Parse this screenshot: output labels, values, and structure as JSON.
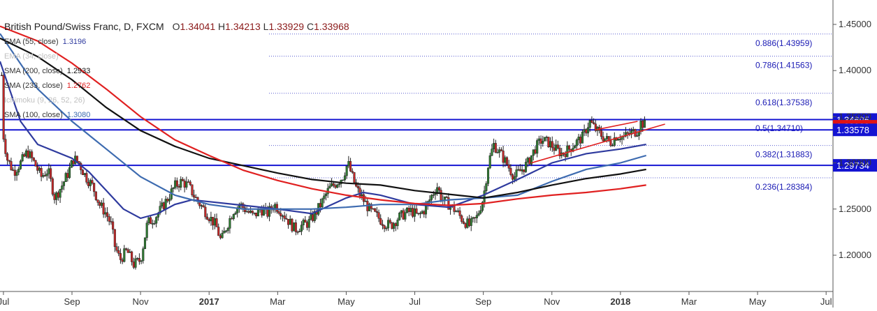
{
  "header": {
    "symbol_title": "British Pound/Swiss Franc, D, FXCM",
    "open_label": "O",
    "open": "1.34041",
    "high_label": "H",
    "high": "1.34213",
    "low_label": "L",
    "low": "1.33929",
    "close_label": "C",
    "close": "1.33968"
  },
  "legend": [
    {
      "label": "EMA (55, close)",
      "value": "1.3196",
      "color": "#2e3a9e",
      "faded": false
    },
    {
      "label": "EMA (34, close)",
      "value": "",
      "color": "#b0b0b0",
      "faded": true
    },
    {
      "label": "SMA (200, close)",
      "value": "1.2933",
      "color": "#111111",
      "faded": false
    },
    {
      "label": "SMA (233, close)",
      "value": "1.2762",
      "color": "#e02020",
      "faded": false
    },
    {
      "label": "Ichimoku (9, 26, 52, 26)",
      "value": "",
      "color": "#c8c8c8",
      "faded": true
    },
    {
      "label": "SMA (100, close)",
      "value": "1.3080",
      "color": "#3d6bb0",
      "faded": false
    }
  ],
  "chart_data": {
    "type": "line",
    "title": "British Pound/Swiss Franc, D, FXCM",
    "ylim": [
      1.175,
      1.465
    ],
    "y_ticks": [
      1.2,
      1.25,
      1.3,
      1.35,
      1.4,
      1.45
    ],
    "y_tick_labels": [
      "1.20000",
      "1.25000",
      "1.30000",
      "1.35000",
      "1.40000",
      "1.45000"
    ],
    "x_ticks": [
      {
        "label": "Jul",
        "t": 0,
        "bold": false
      },
      {
        "label": "Sep",
        "t": 2,
        "bold": false
      },
      {
        "label": "Nov",
        "t": 4,
        "bold": false
      },
      {
        "label": "2017",
        "t": 6,
        "bold": true
      },
      {
        "label": "Mar",
        "t": 8,
        "bold": false
      },
      {
        "label": "May",
        "t": 10,
        "bold": false
      },
      {
        "label": "Jul",
        "t": 12,
        "bold": false
      },
      {
        "label": "Sep",
        "t": 14,
        "bold": false
      },
      {
        "label": "Nov",
        "t": 16,
        "bold": false
      },
      {
        "label": "2018",
        "t": 18,
        "bold": true
      },
      {
        "label": "Mar",
        "t": 20,
        "bold": false
      },
      {
        "label": "May",
        "t": 22,
        "bold": false
      },
      {
        "label": "Jul",
        "t": 24,
        "bold": false
      }
    ],
    "x_domain_months": [
      -0.1,
      24.2
    ],
    "horizontal_levels": [
      {
        "value": 1.34695,
        "label": "1.34695",
        "color": "#1414d2"
      },
      {
        "value": 1.33968,
        "label": "1.33968",
        "color": "#e01414"
      },
      {
        "value": 1.33578,
        "label": "1.33578",
        "color": "#1414d2"
      },
      {
        "value": 1.29734,
        "label": "1.29734",
        "color": "#1414d2"
      }
    ],
    "fib_levels": [
      {
        "value": 1.43959,
        "label": "0.886(1.43959)"
      },
      {
        "value": 1.41563,
        "label": "0.786(1.41563)"
      },
      {
        "value": 1.37538,
        "label": "0.618(1.37538)"
      },
      {
        "value": 1.3471,
        "label": "0.5(1.34710)"
      },
      {
        "value": 1.31883,
        "label": "0.382(1.31883)"
      },
      {
        "value": 1.28384,
        "label": "0.236(1.28384)"
      }
    ],
    "price_close": [
      [
        -0.2,
        1.432
      ],
      [
        -0.05,
        1.395
      ],
      [
        0.0,
        1.33
      ],
      [
        0.1,
        1.305
      ],
      [
        0.3,
        1.29
      ],
      [
        0.5,
        1.3
      ],
      [
        0.7,
        1.312
      ],
      [
        0.9,
        1.3
      ],
      [
        1.1,
        1.285
      ],
      [
        1.3,
        1.292
      ],
      [
        1.5,
        1.262
      ],
      [
        1.7,
        1.275
      ],
      [
        1.9,
        1.29
      ],
      [
        2.05,
        1.305
      ],
      [
        2.2,
        1.3
      ],
      [
        2.4,
        1.285
      ],
      [
        2.6,
        1.275
      ],
      [
        2.8,
        1.255
      ],
      [
        3.0,
        1.245
      ],
      [
        3.15,
        1.232
      ],
      [
        3.25,
        1.21
      ],
      [
        3.4,
        1.195
      ],
      [
        3.6,
        1.205
      ],
      [
        3.8,
        1.19
      ],
      [
        4.0,
        1.195
      ],
      [
        4.1,
        1.215
      ],
      [
        4.2,
        1.235
      ],
      [
        4.4,
        1.24
      ],
      [
        4.6,
        1.25
      ],
      [
        4.8,
        1.262
      ],
      [
        5.0,
        1.275
      ],
      [
        5.2,
        1.28
      ],
      [
        5.4,
        1.275
      ],
      [
        5.6,
        1.262
      ],
      [
        5.8,
        1.252
      ],
      [
        6.0,
        1.242
      ],
      [
        6.2,
        1.232
      ],
      [
        6.35,
        1.215
      ],
      [
        6.5,
        1.23
      ],
      [
        6.7,
        1.248
      ],
      [
        6.9,
        1.255
      ],
      [
        7.1,
        1.248
      ],
      [
        7.3,
        1.242
      ],
      [
        7.5,
        1.25
      ],
      [
        7.7,
        1.245
      ],
      [
        7.9,
        1.255
      ],
      [
        8.1,
        1.248
      ],
      [
        8.3,
        1.238
      ],
      [
        8.5,
        1.228
      ],
      [
        8.7,
        1.232
      ],
      [
        8.9,
        1.235
      ],
      [
        9.1,
        1.245
      ],
      [
        9.3,
        1.258
      ],
      [
        9.5,
        1.272
      ],
      [
        9.7,
        1.278
      ],
      [
        9.9,
        1.285
      ],
      [
        10.05,
        1.3
      ],
      [
        10.15,
        1.288
      ],
      [
        10.3,
        1.272
      ],
      [
        10.5,
        1.26
      ],
      [
        10.7,
        1.248
      ],
      [
        10.9,
        1.242
      ],
      [
        11.1,
        1.235
      ],
      [
        11.3,
        1.232
      ],
      [
        11.5,
        1.24
      ],
      [
        11.7,
        1.245
      ],
      [
        11.9,
        1.248
      ],
      [
        12.1,
        1.242
      ],
      [
        12.3,
        1.25
      ],
      [
        12.5,
        1.265
      ],
      [
        12.65,
        1.275
      ],
      [
        12.8,
        1.26
      ],
      [
        13.0,
        1.255
      ],
      [
        13.2,
        1.248
      ],
      [
        13.4,
        1.238
      ],
      [
        13.6,
        1.232
      ],
      [
        13.8,
        1.24
      ],
      [
        14.0,
        1.262
      ],
      [
        14.15,
        1.3
      ],
      [
        14.3,
        1.32
      ],
      [
        14.5,
        1.31
      ],
      [
        14.7,
        1.298
      ],
      [
        14.9,
        1.285
      ],
      [
        15.1,
        1.292
      ],
      [
        15.3,
        1.3
      ],
      [
        15.5,
        1.315
      ],
      [
        15.7,
        1.325
      ],
      [
        15.9,
        1.322
      ],
      [
        16.1,
        1.315
      ],
      [
        16.3,
        1.31
      ],
      [
        16.5,
        1.315
      ],
      [
        16.7,
        1.322
      ],
      [
        16.9,
        1.328
      ],
      [
        17.1,
        1.345
      ],
      [
        17.3,
        1.335
      ],
      [
        17.5,
        1.328
      ],
      [
        17.7,
        1.322
      ],
      [
        17.9,
        1.33
      ],
      [
        18.1,
        1.328
      ],
      [
        18.3,
        1.332
      ],
      [
        18.5,
        1.335
      ],
      [
        18.6,
        1.344
      ],
      [
        18.75,
        1.34
      ]
    ],
    "series": [
      {
        "name": "EMA (55, close)",
        "color": "#2e3a9e",
        "points": [
          [
            -0.1,
            1.41
          ],
          [
            0.5,
            1.345
          ],
          [
            1.0,
            1.32
          ],
          [
            2.0,
            1.305
          ],
          [
            2.5,
            1.29
          ],
          [
            3.0,
            1.27
          ],
          [
            3.5,
            1.25
          ],
          [
            4.0,
            1.24
          ],
          [
            4.5,
            1.245
          ],
          [
            5.0,
            1.255
          ],
          [
            5.5,
            1.26
          ],
          [
            6.0,
            1.258
          ],
          [
            7.0,
            1.254
          ],
          [
            8.0,
            1.25
          ],
          [
            9.0,
            1.245
          ],
          [
            10.0,
            1.262
          ],
          [
            10.5,
            1.268
          ],
          [
            11.0,
            1.265
          ],
          [
            12.0,
            1.255
          ],
          [
            13.0,
            1.252
          ],
          [
            14.0,
            1.265
          ],
          [
            15.0,
            1.282
          ],
          [
            16.0,
            1.3
          ],
          [
            17.0,
            1.31
          ],
          [
            18.0,
            1.315
          ],
          [
            18.75,
            1.32
          ]
        ]
      },
      {
        "name": "SMA (100, close)",
        "color": "#3d6bb0",
        "points": [
          [
            -0.1,
            1.44
          ],
          [
            1.0,
            1.38
          ],
          [
            2.0,
            1.345
          ],
          [
            3.0,
            1.315
          ],
          [
            4.0,
            1.285
          ],
          [
            5.0,
            1.265
          ],
          [
            6.0,
            1.255
          ],
          [
            7.0,
            1.25
          ],
          [
            8.0,
            1.25
          ],
          [
            9.0,
            1.25
          ],
          [
            10.0,
            1.252
          ],
          [
            11.0,
            1.255
          ],
          [
            12.0,
            1.255
          ],
          [
            13.0,
            1.26
          ],
          [
            14.0,
            1.262
          ],
          [
            15.0,
            1.265
          ],
          [
            16.0,
            1.28
          ],
          [
            17.0,
            1.293
          ],
          [
            18.0,
            1.3
          ],
          [
            18.75,
            1.308
          ]
        ]
      },
      {
        "name": "SMA (200, close)",
        "color": "#111111",
        "points": [
          [
            -0.1,
            1.435
          ],
          [
            1.0,
            1.415
          ],
          [
            2.0,
            1.39
          ],
          [
            3.0,
            1.36
          ],
          [
            4.0,
            1.335
          ],
          [
            5.0,
            1.318
          ],
          [
            6.0,
            1.305
          ],
          [
            7.0,
            1.297
          ],
          [
            8.0,
            1.289
          ],
          [
            9.0,
            1.282
          ],
          [
            10.0,
            1.278
          ],
          [
            11.0,
            1.276
          ],
          [
            12.0,
            1.27
          ],
          [
            13.0,
            1.266
          ],
          [
            14.0,
            1.262
          ],
          [
            15.0,
            1.268
          ],
          [
            16.0,
            1.276
          ],
          [
            17.0,
            1.283
          ],
          [
            18.0,
            1.288
          ],
          [
            18.75,
            1.293
          ]
        ]
      },
      {
        "name": "SMA (233, close)",
        "color": "#e02020",
        "points": [
          [
            -0.1,
            1.448
          ],
          [
            1.0,
            1.432
          ],
          [
            2.0,
            1.408
          ],
          [
            3.0,
            1.38
          ],
          [
            4.0,
            1.35
          ],
          [
            5.0,
            1.325
          ],
          [
            6.0,
            1.308
          ],
          [
            7.0,
            1.292
          ],
          [
            8.0,
            1.281
          ],
          [
            9.0,
            1.272
          ],
          [
            10.0,
            1.265
          ],
          [
            11.0,
            1.26
          ],
          [
            12.0,
            1.256
          ],
          [
            13.0,
            1.254
          ],
          [
            14.0,
            1.256
          ],
          [
            15.0,
            1.261
          ],
          [
            16.0,
            1.265
          ],
          [
            17.0,
            1.268
          ],
          [
            18.0,
            1.272
          ],
          [
            18.75,
            1.276
          ]
        ]
      }
    ],
    "trendlines": [
      {
        "color": "#e02020",
        "points": [
          [
            15.4,
            1.3
          ],
          [
            19.3,
            1.342
          ]
        ]
      },
      {
        "color": "#e02020",
        "points": [
          [
            17.3,
            1.336
          ],
          [
            18.5,
            1.345
          ]
        ]
      }
    ]
  }
}
